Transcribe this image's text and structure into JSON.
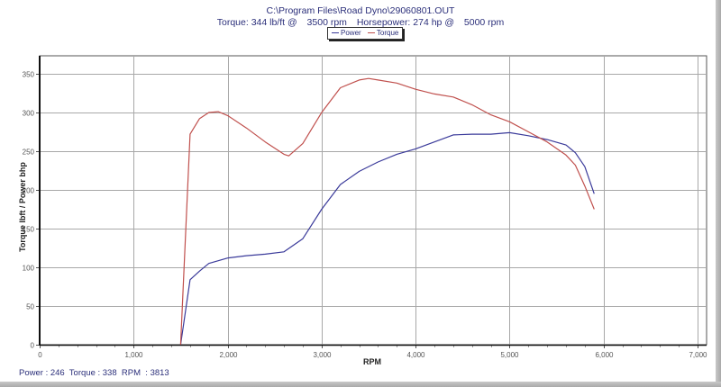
{
  "header": {
    "file_path": "C:\\Program Files\\Road Dyno\\29060801.OUT",
    "torque_label": "Torque:",
    "torque_peak": "344 lb/ft @",
    "torque_rpm": "3500 rpm",
    "hp_label": "Horsepower:",
    "hp_peak": "274 hp @",
    "hp_rpm": "5000 rpm"
  },
  "legend": {
    "power_label": "Power",
    "torque_label": "Torque"
  },
  "axes": {
    "ylabel": "Torque lbft / Power bhp",
    "xlabel": "RPM",
    "y_ticks": [
      "0",
      "50",
      "100",
      "150",
      "200",
      "250",
      "300",
      "350"
    ],
    "x_ticks": [
      "0",
      "1,000",
      "2,000",
      "3,000",
      "4,000",
      "5,000",
      "6,000",
      "7,000"
    ]
  },
  "status_bar": {
    "text": "Power : 246  Torque : 338  RPM  : 3813"
  },
  "colors": {
    "power": "#3a3a9a",
    "torque": "#c0504d",
    "grid": "#a8a8a8",
    "text": "#2b2f7a"
  },
  "chart_data": {
    "type": "line",
    "title": "C:\\Program Files\\Road Dyno\\29060801.OUT",
    "subtitle": "Torque: 344 lb/ft @ 3500 rpm  Horsepower: 274 hp @ 5000 rpm",
    "xlabel": "RPM",
    "ylabel": "Torque lbft / Power bhp",
    "xlim": [
      0,
      7000
    ],
    "ylim": [
      0,
      350
    ],
    "grid": true,
    "legend_position": "top-center",
    "series": [
      {
        "name": "Power",
        "color": "#3a3a9a",
        "x": [
          1500,
          1600,
          1700,
          1800,
          2000,
          2200,
          2400,
          2600,
          2800,
          3000,
          3200,
          3400,
          3600,
          3800,
          4000,
          4200,
          4400,
          4600,
          4800,
          5000,
          5200,
          5400,
          5600,
          5700,
          5800,
          5900
        ],
        "values": [
          0,
          84,
          95,
          105,
          112,
          115,
          117,
          120,
          137,
          175,
          207,
          224,
          236,
          246,
          253,
          262,
          271,
          272,
          272,
          274,
          270,
          265,
          258,
          248,
          230,
          195
        ]
      },
      {
        "name": "Torque",
        "color": "#c0504d",
        "x": [
          1500,
          1600,
          1700,
          1800,
          1900,
          2000,
          2200,
          2400,
          2600,
          2650,
          2800,
          3000,
          3200,
          3400,
          3500,
          3600,
          3800,
          4000,
          4200,
          4400,
          4600,
          4800,
          5000,
          5200,
          5400,
          5600,
          5700,
          5800,
          5900
        ],
        "values": [
          0,
          272,
          292,
          300,
          301,
          296,
          280,
          262,
          246,
          244,
          260,
          300,
          332,
          342,
          344,
          342,
          338,
          330,
          324,
          320,
          310,
          297,
          288,
          275,
          262,
          245,
          232,
          205,
          175
        ]
      }
    ]
  }
}
